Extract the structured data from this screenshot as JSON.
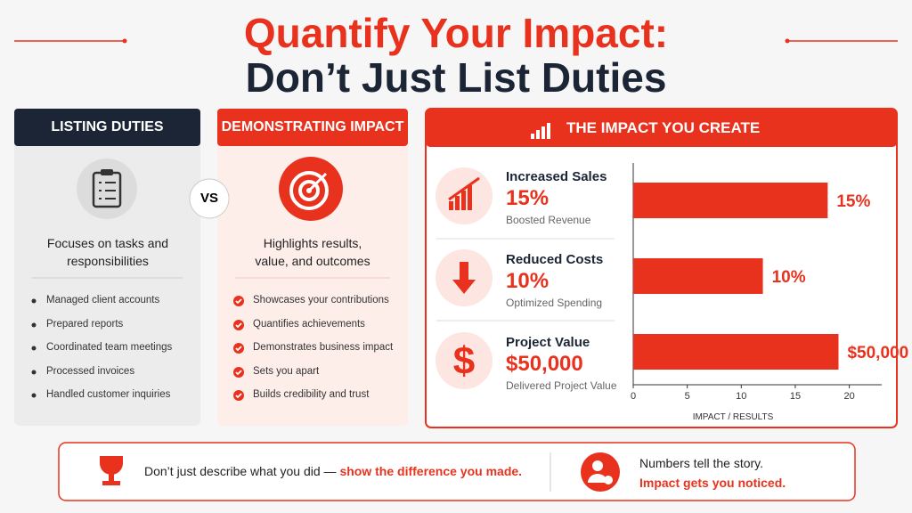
{
  "header": {
    "title_line1": "Quantify Your Impact:",
    "title_line2": "Don’t Just List Duties"
  },
  "duties": {
    "title": "LISTING DUTIES",
    "summary": "Focuses on tasks and responsibilities",
    "items": [
      "Managed client accounts",
      "Prepared reports",
      "Coordinated team meetings",
      "Processed invoices",
      "Handled customer inquiries"
    ]
  },
  "vs": "VS",
  "impact": {
    "title": "DEMONSTRATING IMPACT",
    "summary": "Highlights results, value, and outcomes",
    "items": [
      "Showcases your contributions",
      "Quantifies achievements",
      "Demonstrates business impact",
      "Sets you apart",
      "Builds credibility and trust"
    ]
  },
  "results": {
    "title": "THE IMPACT YOU CREATE",
    "metrics": [
      {
        "name": "Increased Sales",
        "value": "15%",
        "note": "Boosted Revenue"
      },
      {
        "name": "Reduced Costs",
        "value": "10%",
        "note": "Optimized Spending"
      },
      {
        "name": "Project Value",
        "value": "$50,000",
        "note": "Delivered Project Value"
      }
    ]
  },
  "chart_data": {
    "type": "bar",
    "orientation": "horizontal",
    "categories": [
      null,
      null,
      null
    ],
    "values": [
      18,
      12,
      19
    ],
    "color": "#e8321e",
    "xlim": [
      0,
      23
    ],
    "xticks": [
      0,
      5,
      10,
      15,
      20
    ],
    "xlabel": "IMPACT / RESULTS"
  },
  "footer": {
    "text": "Don’t just describe what you did — ",
    "highlight": "show the difference you made.",
    "right_line1": "Numbers tell the story.",
    "right_line2": "Impact gets you noticed."
  }
}
